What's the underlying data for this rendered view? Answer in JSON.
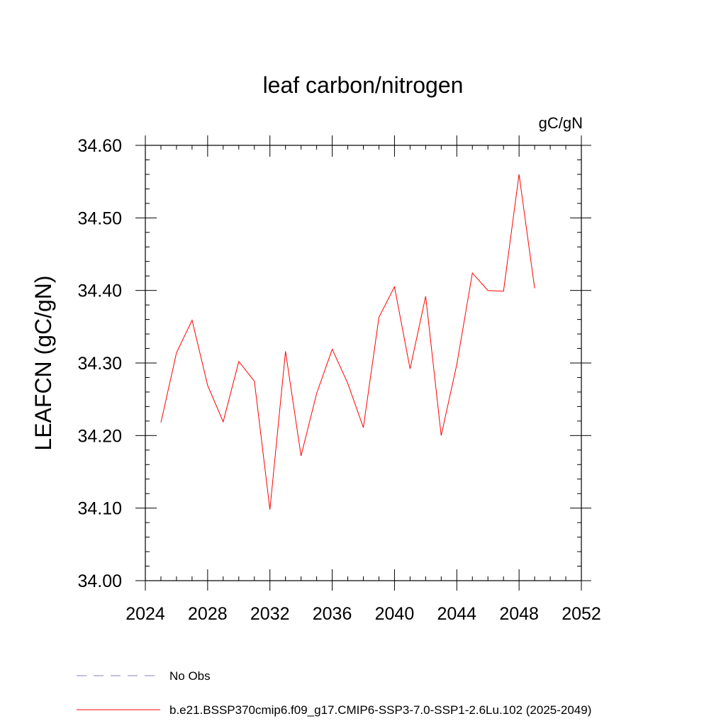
{
  "chart_data": {
    "type": "line",
    "title": "leaf carbon/nitrogen",
    "unit_label": "gC/gN",
    "ylabel": "LEAFCN  (gC/gN)",
    "xlabel": "",
    "xlim": [
      2024,
      2052
    ],
    "ylim": [
      34.0,
      34.6
    ],
    "x_ticks": [
      2024,
      2028,
      2032,
      2036,
      2040,
      2044,
      2048,
      2052
    ],
    "x_tick_labels": [
      "2024",
      "2028",
      "2032",
      "2036",
      "2040",
      "2044",
      "2048",
      "2052"
    ],
    "y_ticks": [
      34.0,
      34.1,
      34.2,
      34.3,
      34.4,
      34.5,
      34.6
    ],
    "y_tick_labels": [
      "34.00",
      "34.10",
      "34.20",
      "34.30",
      "34.40",
      "34.50",
      "34.60"
    ],
    "grid": false,
    "legend_position": "bottom",
    "series": [
      {
        "name": "b.e21.BSSP370cmip6.f09_g17.CMIP6-SSP3-7.0-SSP1-2.6Lu.102 (2025-2049)",
        "color": "#ff0000",
        "style": "solid",
        "x": [
          2025,
          2026,
          2027,
          2028,
          2029,
          2030,
          2031,
          2032,
          2033,
          2034,
          2035,
          2036,
          2037,
          2038,
          2039,
          2040,
          2041,
          2042,
          2043,
          2044,
          2045,
          2046,
          2047,
          2048,
          2049
        ],
        "y": [
          34.218,
          34.314,
          34.359,
          34.269,
          34.219,
          34.302,
          34.275,
          34.098,
          34.316,
          34.172,
          34.258,
          34.319,
          34.272,
          34.211,
          34.363,
          34.405,
          34.292,
          34.392,
          34.2,
          34.298,
          34.424,
          34.4,
          34.399,
          34.56,
          34.403
        ]
      }
    ],
    "legend": [
      {
        "label": "No Obs",
        "color": "#8080c0",
        "style": "dashed"
      },
      {
        "label": "b.e21.BSSP370cmip6.f09_g17.CMIP6-SSP3-7.0-SSP1-2.6Lu.102 (2025-2049)",
        "color": "#ff0000",
        "style": "solid"
      }
    ]
  }
}
